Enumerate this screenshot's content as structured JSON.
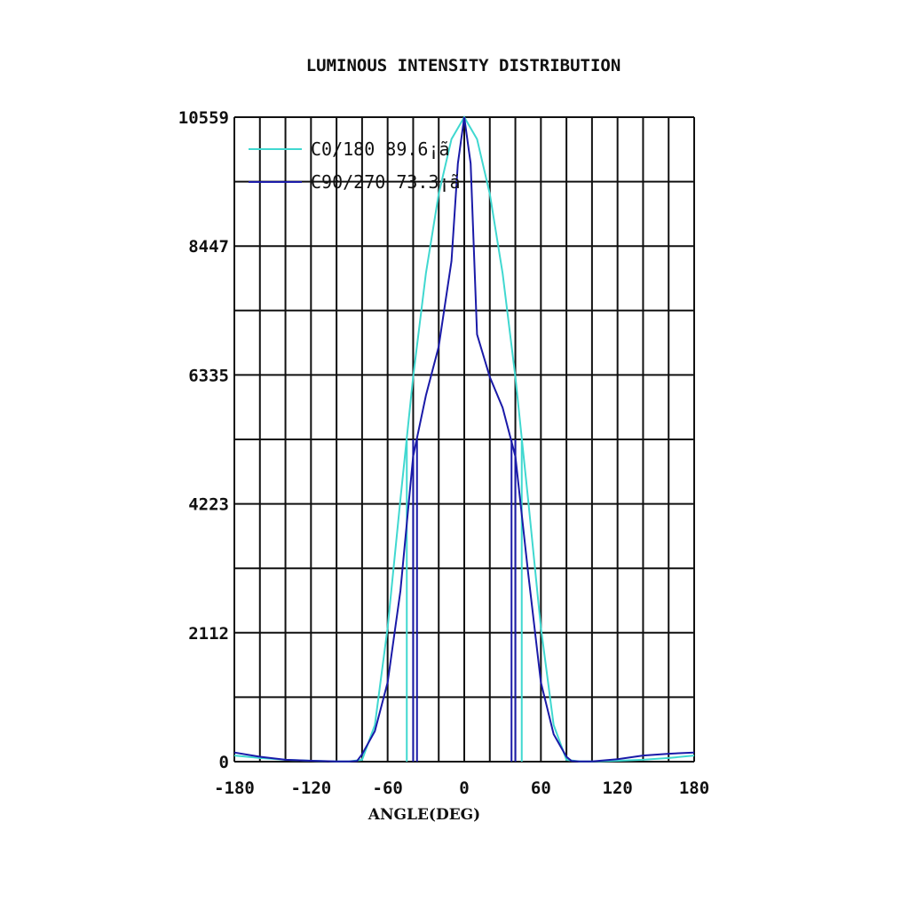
{
  "chart_data": {
    "type": "line",
    "title": "LUMINOUS INTENSITY DISTRIBUTION",
    "xlabel": "ANGLE(DEG)",
    "ylabel": "",
    "xlim": [
      -180,
      180
    ],
    "ylim": [
      0,
      10559
    ],
    "x_ticks": [
      -180,
      -120,
      -60,
      0,
      60,
      120,
      180
    ],
    "y_ticks": [
      0,
      2112,
      4223,
      6335,
      8447,
      10559
    ],
    "x_grid_step": 20,
    "y_grid_step": 1056,
    "grid": true,
    "legend_position": "top-left",
    "series": [
      {
        "name": "C0/180 89.6¡ã",
        "color": "#40d8d0",
        "x": [
          -180,
          -160,
          -140,
          -120,
          -100,
          -90,
          -80,
          -70,
          -60,
          -50,
          -40,
          -30,
          -20,
          -10,
          0,
          10,
          20,
          30,
          40,
          50,
          60,
          70,
          80,
          90,
          100,
          120,
          140,
          160,
          180
        ],
        "y": [
          100,
          60,
          30,
          15,
          5,
          5,
          30,
          600,
          2200,
          4300,
          6300,
          8000,
          9300,
          10200,
          10559,
          10200,
          9300,
          8000,
          6300,
          4300,
          2200,
          600,
          30,
          5,
          5,
          15,
          30,
          60,
          100
        ],
        "drops": [
          -45,
          45
        ]
      },
      {
        "name": "C90/270 73.3¡ã",
        "color": "#1a1aa8",
        "x": [
          -180,
          -160,
          -140,
          -120,
          -100,
          -90,
          -84,
          -80,
          -70,
          -60,
          -50,
          -40,
          -30,
          -20,
          -10,
          -5,
          0,
          5,
          10,
          20,
          30,
          40,
          50,
          60,
          70,
          80,
          84,
          90,
          100,
          120,
          140,
          160,
          180
        ],
        "y": [
          150,
          80,
          30,
          15,
          5,
          5,
          10,
          120,
          500,
          1300,
          2800,
          5000,
          6000,
          6800,
          8200,
          9800,
          10559,
          9800,
          7000,
          6300,
          5800,
          5000,
          3100,
          1300,
          450,
          80,
          10,
          5,
          5,
          40,
          100,
          130,
          150
        ],
        "drops": [
          -40,
          -37,
          37,
          40
        ]
      }
    ]
  }
}
